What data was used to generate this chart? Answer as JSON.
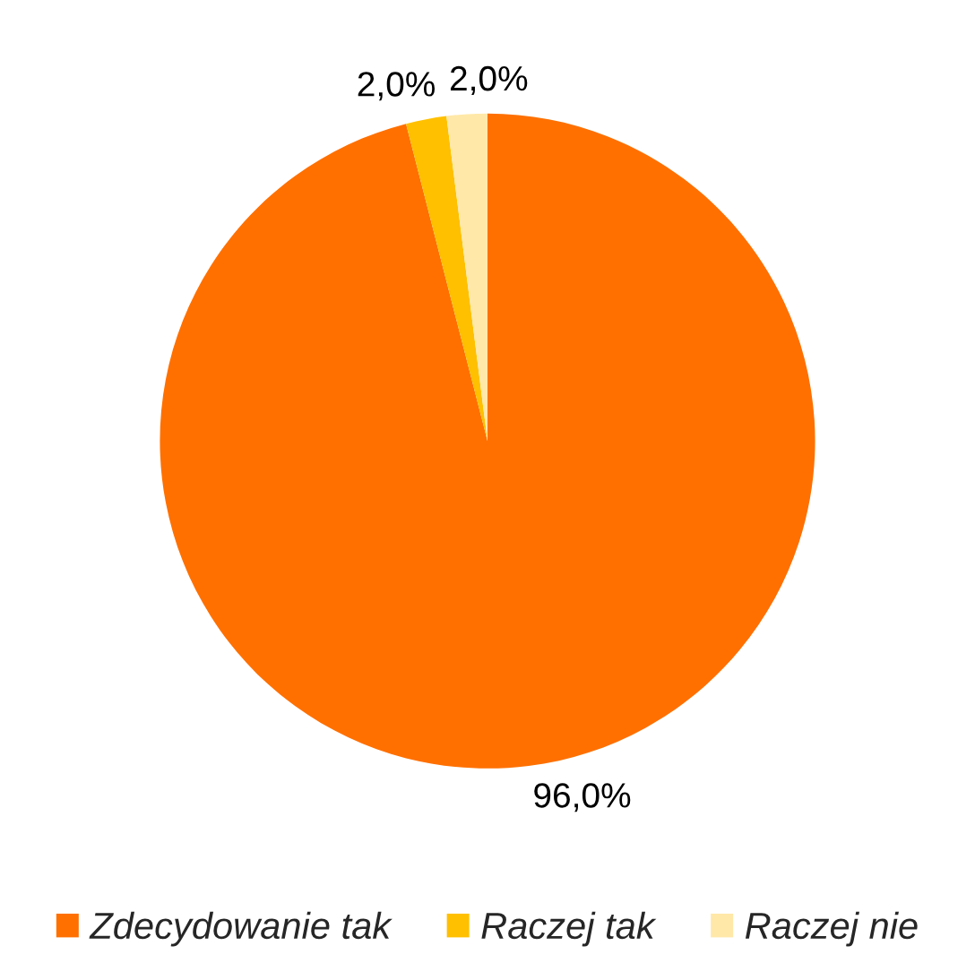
{
  "chart_data": {
    "type": "pie",
    "categories": [
      "Zdecydowanie tak",
      "Raczej tak",
      "Raczej nie"
    ],
    "values": [
      96.0,
      2.0,
      2.0
    ],
    "colors": [
      "#ff7000",
      "#ffc000",
      "#ffe8a8"
    ],
    "value_labels": [
      "96,0%",
      "2,0%",
      "2,0%"
    ],
    "legend": "bottom"
  }
}
